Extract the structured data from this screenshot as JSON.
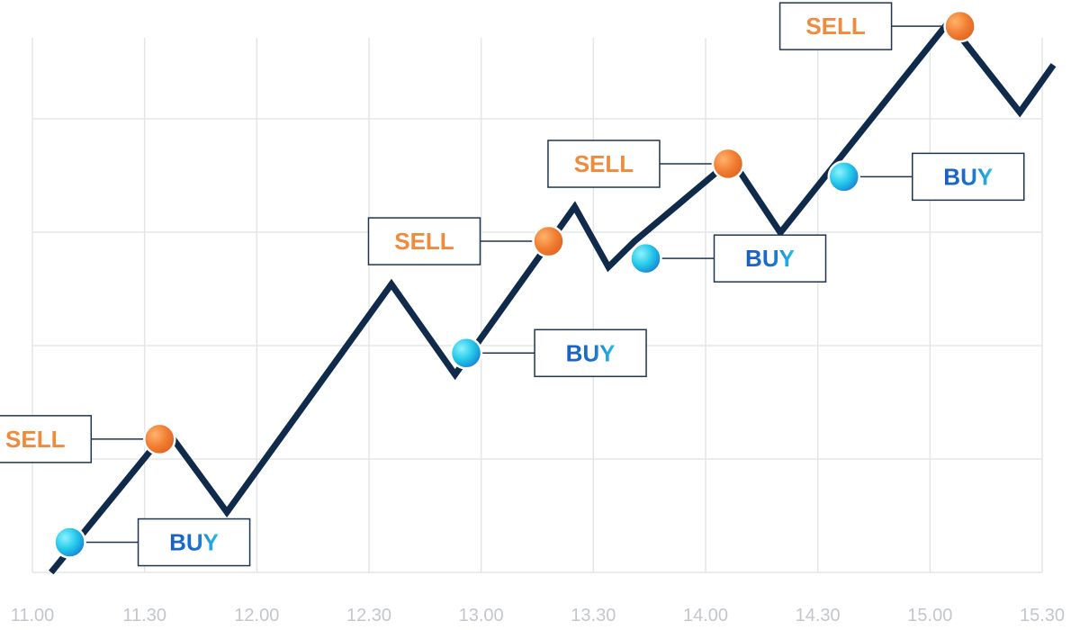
{
  "chart_data": {
    "type": "line",
    "title": "",
    "xlabel": "",
    "ylabel": "",
    "x_ticks": [
      "11.00",
      "11.30",
      "12.00",
      "12.30",
      "13.00",
      "13.30",
      "14.00",
      "14.30",
      "15.00",
      "15.30"
    ],
    "grid": true,
    "series": [
      {
        "points": [
          {
            "x": "11.05",
            "y": 0.0
          },
          {
            "x": "11.36",
            "y": 1.65
          },
          {
            "x": "11.52",
            "y": 0.7
          },
          {
            "x": "12.36",
            "y": 3.35
          },
          {
            "x": "12.53",
            "y": 2.3
          },
          {
            "x": "13.25",
            "y": 4.25
          },
          {
            "x": "13.34",
            "y": 3.55
          },
          {
            "x": "13.41",
            "y": 3.85
          },
          {
            "x": "14.07",
            "y": 4.8
          },
          {
            "x": "14.20",
            "y": 3.95
          },
          {
            "x": "15.05",
            "y": 6.4
          },
          {
            "x": "15.24",
            "y": 5.35
          },
          {
            "x": "15.33",
            "y": 5.9
          }
        ]
      }
    ],
    "signals": [
      {
        "type": "BUY",
        "x": "11.10",
        "y": 0.35
      },
      {
        "type": "SELL",
        "x": "11.34",
        "y": 1.55
      },
      {
        "type": "BUY",
        "x": "12.56",
        "y": 2.55
      },
      {
        "type": "SELL",
        "x": "13.18",
        "y": 3.85
      },
      {
        "type": "BUY",
        "x": "13.44",
        "y": 3.65
      },
      {
        "type": "SELL",
        "x": "14.06",
        "y": 4.75
      },
      {
        "type": "BUY",
        "x": "14.37",
        "y": 4.6
      },
      {
        "type": "SELL",
        "x": "15.08",
        "y": 6.35
      }
    ],
    "labels": {
      "buy": "BUY",
      "sell": "SELL"
    },
    "colors": {
      "line": "#0f2a4a",
      "sell_text": "#f08a3c",
      "buy_text": "#1a6fc9",
      "buy_text_accent": "#29c3e8",
      "sell_marker": "#f07b30",
      "buy_marker": "#22c8e8",
      "grid": "#e3e5e8",
      "tick": "#c3c7cd"
    }
  }
}
